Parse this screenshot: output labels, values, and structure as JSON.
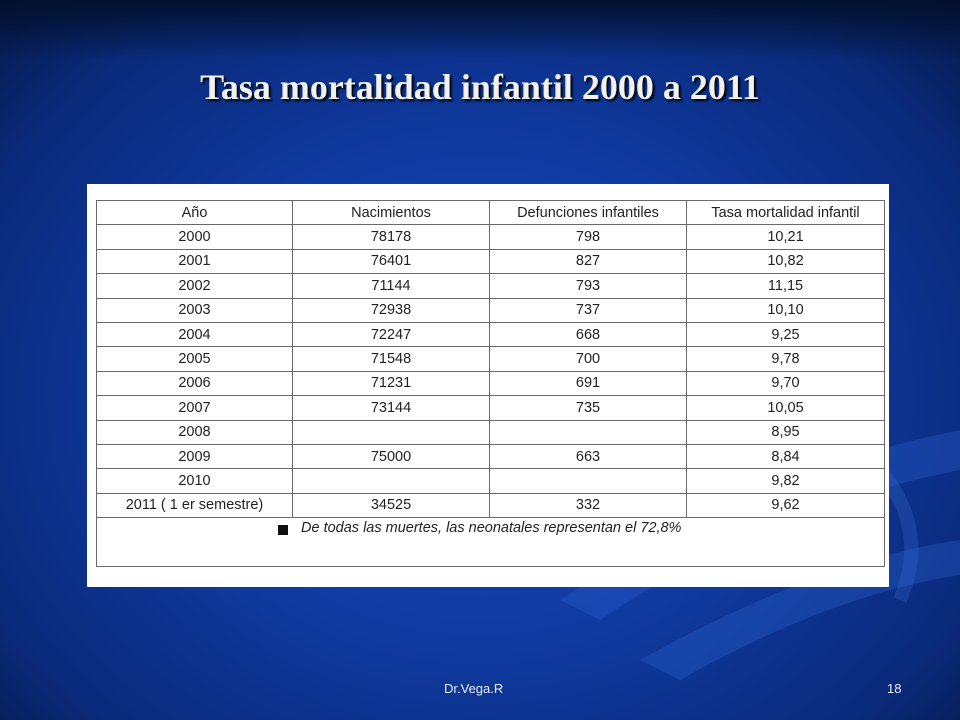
{
  "slide": {
    "title": "Tasa mortalidad infantil 2000 a 2011",
    "footer_author": "Dr.Vega.R",
    "page_number": "18"
  },
  "table": {
    "headers": [
      "Año",
      "Nacimientos",
      "Defunciones infantiles",
      "Tasa mortalidad infantil"
    ],
    "rows": [
      [
        "2000",
        "78178",
        "798",
        "10,21"
      ],
      [
        "2001",
        "76401",
        "827",
        "10,82"
      ],
      [
        "2002",
        "71144",
        "793",
        "11,15"
      ],
      [
        "2003",
        "72938",
        "737",
        "10,10"
      ],
      [
        "2004",
        "72247",
        "668",
        "9,25"
      ],
      [
        "2005",
        "71548",
        "700",
        "9,78"
      ],
      [
        "2006",
        "71231",
        "691",
        "9,70"
      ],
      [
        "2007",
        "73144",
        "735",
        "10,05"
      ],
      [
        "2008",
        "",
        "",
        "8,95"
      ],
      [
        "2009",
        "75000",
        "663",
        "8,84"
      ],
      [
        "2010",
        "",
        "",
        "9,82"
      ],
      [
        "2011 ( 1 er semestre)",
        "34525",
        "332",
        "9,62"
      ]
    ],
    "note": "De todas las muertes, las neonatales representan el 72,8%"
  },
  "colors": {
    "background": "#1747b8",
    "title_text": "#f1f1f1"
  }
}
